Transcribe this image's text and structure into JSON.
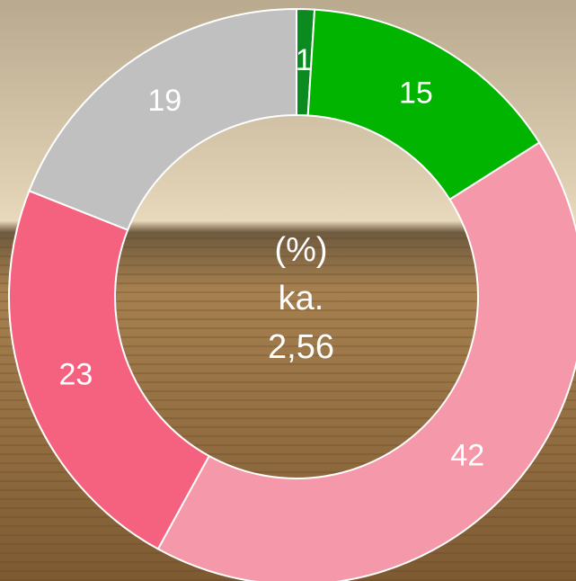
{
  "chart_data": {
    "type": "donut",
    "values": [
      1,
      15,
      42,
      23,
      19
    ],
    "colors": [
      "#0b8a1f",
      "#00b400",
      "#f598a9",
      "#f5627f",
      "#c0c0c0"
    ],
    "center_text": [
      "(%)",
      "ka.",
      "2,56"
    ]
  }
}
